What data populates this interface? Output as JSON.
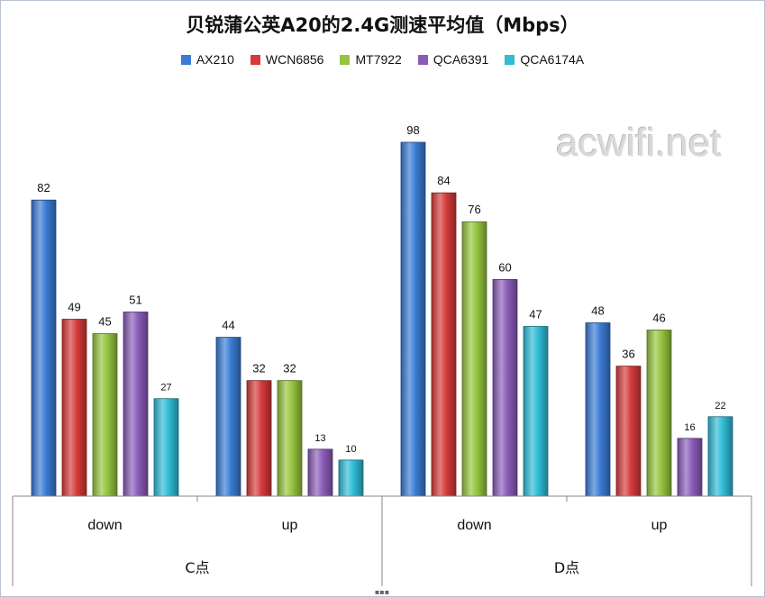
{
  "watermark": "acwifi.net",
  "chart_data": {
    "type": "bar",
    "title": "贝锐蒲公英A20的2.4G测速平均值（Mbps）",
    "xlabel": "",
    "ylabel": "",
    "ylim": [
      0,
      100
    ],
    "grid": false,
    "legend_position": "top",
    "groups": [
      {
        "label": "C点",
        "categories": [
          "down",
          "up"
        ]
      },
      {
        "label": "D点",
        "categories": [
          "down",
          "up"
        ]
      }
    ],
    "categories": [
      "down",
      "up",
      "down",
      "up"
    ],
    "series": [
      {
        "name": "AX210",
        "color": "#3a7bd5",
        "values": [
          82,
          44,
          98,
          48
        ]
      },
      {
        "name": "WCN6856",
        "color": "#d63a3a",
        "values": [
          49,
          32,
          84,
          36
        ]
      },
      {
        "name": "MT7922",
        "color": "#95c43d",
        "values": [
          45,
          32,
          76,
          46
        ]
      },
      {
        "name": "QCA6391",
        "color": "#8a5cb8",
        "values": [
          51,
          13,
          60,
          16
        ]
      },
      {
        "name": "QCA6174A",
        "color": "#2fbcd6",
        "values": [
          27,
          10,
          47,
          22
        ]
      }
    ]
  }
}
